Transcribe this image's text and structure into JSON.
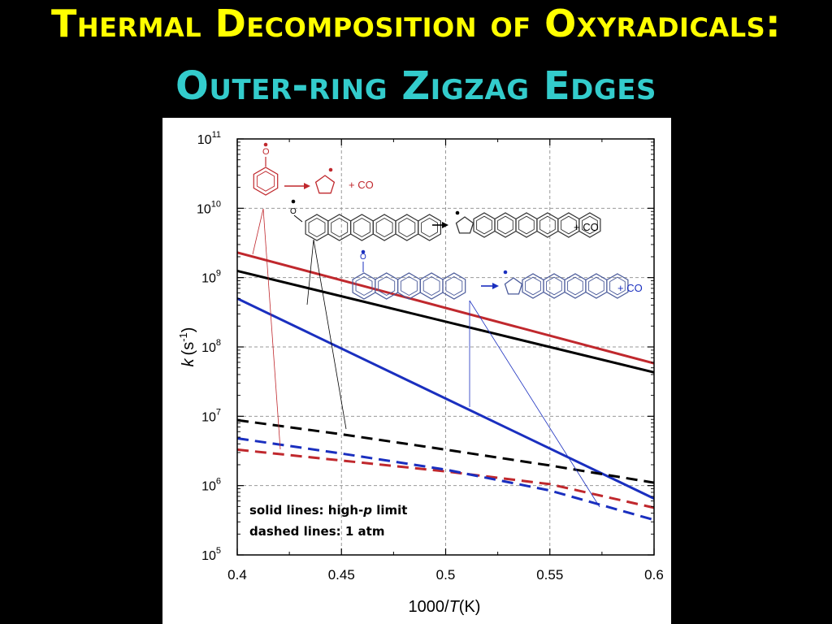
{
  "slide": {
    "title_line1": "Thermal Decomposition of Oxyradicals:",
    "title_line2": "Outer-ring Zigzag Edges",
    "title_line1_color": "#ffff00",
    "title_line2_color": "#33cccc",
    "background": "#000000"
  },
  "chart_data": {
    "type": "line",
    "xlabel_prefix": "1000/",
    "xlabel_var": "T",
    "xlabel_suffix": "(K)",
    "ylabel_var": "k",
    "ylabel_unit": "(s",
    "ylabel_exp": "-1",
    "ylabel_close": ")",
    "xlim": [
      0.4,
      0.6
    ],
    "ylim_log10": [
      5,
      11
    ],
    "yscale": "log",
    "grid": true,
    "xticks": [
      0.4,
      0.45,
      0.5,
      0.55,
      0.6
    ],
    "xtick_labels": [
      "0.4",
      "0.45",
      "0.5",
      "0.55",
      "0.6"
    ],
    "yticks": [
      {
        "base": "10",
        "exp": "11"
      },
      {
        "base": "10",
        "exp": "10"
      },
      {
        "base": "10",
        "exp": "9"
      },
      {
        "base": "10",
        "exp": "8"
      },
      {
        "base": "10",
        "exp": "7"
      },
      {
        "base": "10",
        "exp": "6"
      },
      {
        "base": "10",
        "exp": "5"
      }
    ],
    "series": [
      {
        "color": "#c0282d",
        "style": "solid",
        "x": [
          0.4,
          0.6
        ],
        "y": [
          2300000000.0,
          58000000.0
        ]
      },
      {
        "color": "#000000",
        "style": "solid",
        "x": [
          0.4,
          0.6
        ],
        "y": [
          1250000000.0,
          43000000.0
        ]
      },
      {
        "color": "#1a2fbf",
        "style": "solid",
        "x": [
          0.4,
          0.6
        ],
        "y": [
          500000000.0,
          650000.0
        ]
      },
      {
        "color": "#000000",
        "style": "dashed",
        "x": [
          0.4,
          0.45,
          0.5,
          0.55,
          0.6
        ],
        "y": [
          8800000.0,
          5500000.0,
          3300000.0,
          1950000.0,
          1100000.0
        ]
      },
      {
        "color": "#c0282d",
        "style": "dashed",
        "x": [
          0.4,
          0.45,
          0.5,
          0.55,
          0.6
        ],
        "y": [
          3300000.0,
          2300000.0,
          1600000.0,
          1050000.0,
          480000.0
        ]
      },
      {
        "color": "#1a2fbf",
        "style": "dashed",
        "x": [
          0.4,
          0.45,
          0.5,
          0.55,
          0.6
        ],
        "y": [
          4800000.0,
          2900000.0,
          1700000.0,
          850000.0,
          320000.0
        ]
      }
    ],
    "annotations": {
      "plus_co": "+ CO",
      "radical_o": "O",
      "note_line1_a": "solid lines: high-",
      "note_line1_p": "p",
      "note_line1_b": " limit",
      "note_line2": "dashed lines: 1 atm",
      "colors": {
        "red": "#c0282d",
        "black": "#000000",
        "blue": "#1a2fbf"
      }
    }
  }
}
